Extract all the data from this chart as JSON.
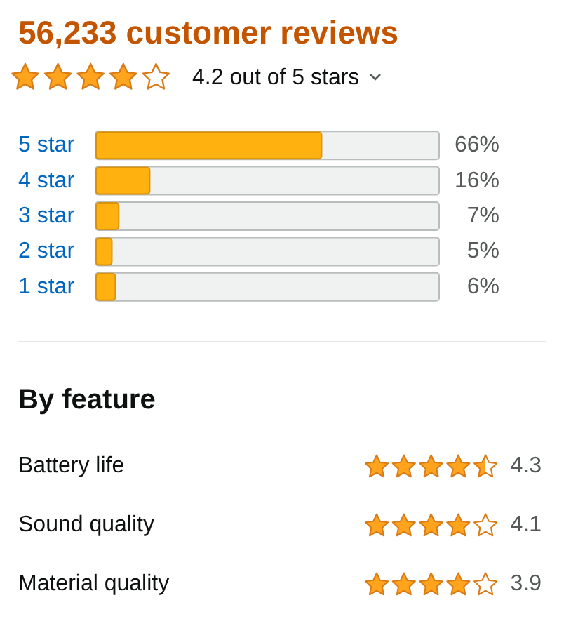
{
  "chart_data": [
    {
      "type": "bar",
      "orientation": "horizontal",
      "title": "56,233 customer reviews",
      "subtitle": "4.2 out of 5 stars",
      "categories": [
        "5 star",
        "4 star",
        "3 star",
        "2 star",
        "1 star"
      ],
      "values": [
        66,
        16,
        7,
        5,
        6
      ],
      "value_labels": [
        "66%",
        "16%",
        "7%",
        "5%",
        "6%"
      ],
      "color": "#ffb20f",
      "xlim": [
        0,
        100
      ],
      "tick_labels": "y"
    },
    {
      "type": "other",
      "title": "By feature",
      "categories": [
        "Battery life",
        "Sound quality",
        "Material quality"
      ],
      "values": [
        4.3,
        4.1,
        3.9
      ],
      "data_labels": true
    }
  ]
}
